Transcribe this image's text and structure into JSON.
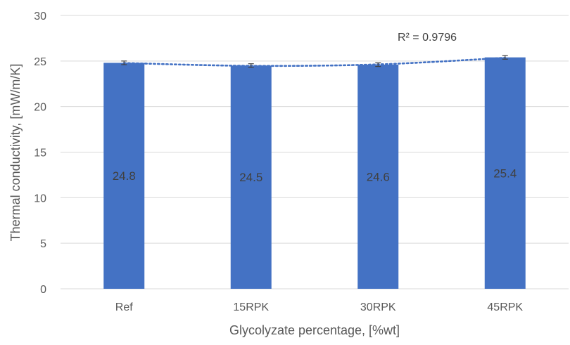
{
  "chart_data": {
    "type": "bar",
    "categories": [
      "Ref",
      "15RPK",
      "30RPK",
      "45RPK"
    ],
    "series": [
      {
        "values": [
          24.8,
          24.5,
          24.6,
          25.4
        ],
        "error": [
          0.2,
          0.2,
          0.2,
          0.2
        ],
        "data_labels": [
          "24.8",
          "24.5",
          "24.6",
          "25.4"
        ]
      }
    ],
    "trendline": {
      "type": "polynomial",
      "label": "R² = 0.9796",
      "values": [
        24.78,
        24.47,
        24.63,
        25.35
      ]
    },
    "xlabel": "Glycolyzate percentage, [%wt]",
    "ylabel": "Thermal conductivity, [mW/m/K]",
    "ylim": [
      0,
      30
    ],
    "yticks": [
      "0",
      "5",
      "10",
      "15",
      "20",
      "25",
      "30"
    ],
    "grid": true,
    "colors": {
      "bar": "#4472C4",
      "trend": "#4472C4",
      "grid": "#d9d9d9",
      "text": "#595959",
      "error": "#404040"
    }
  }
}
